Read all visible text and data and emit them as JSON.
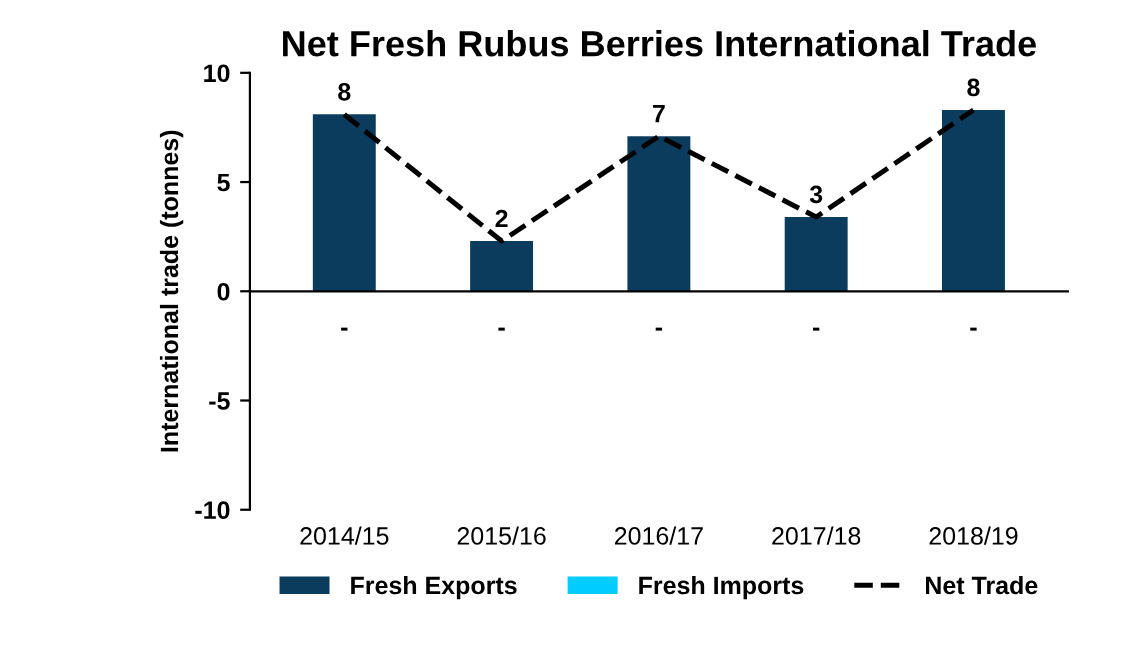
{
  "chart_data": {
    "type": "bar",
    "title": "Net Fresh Rubus Berries International Trade",
    "ylabel": "International trade (tonnes)",
    "categories": [
      "2014/15",
      "2015/16",
      "2016/17",
      "2017/18",
      "2018/19"
    ],
    "series": [
      {
        "name": "Fresh Exports",
        "color": "#0b3c5d",
        "values": [
          8.1,
          2.3,
          7.1,
          3.4,
          8.3
        ],
        "value_labels": [
          "8",
          "2",
          "7",
          "3",
          "8"
        ]
      },
      {
        "name": "Fresh Imports",
        "color": "#00ccff",
        "values": [
          0,
          0,
          0,
          0,
          0
        ],
        "value_labels": [
          "-",
          "-",
          "-",
          "-",
          "-"
        ]
      },
      {
        "name": "Net Trade",
        "type": "line",
        "color": "#000000",
        "line_style": "dashed",
        "values": [
          8.1,
          2.3,
          7.1,
          3.4,
          8.3
        ]
      }
    ],
    "ylim": [
      -10,
      10
    ],
    "yticks": [
      -10,
      -5,
      0,
      5,
      10
    ],
    "legend": "bottom"
  }
}
